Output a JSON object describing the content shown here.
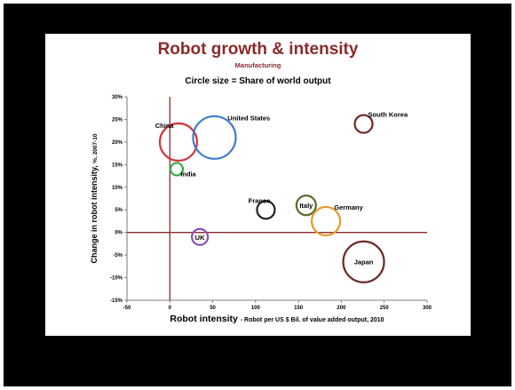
{
  "chart_data": {
    "type": "scatter",
    "title": "Robot growth & intensity",
    "subtitle": "Manufacturing",
    "note": "Circle size = Share of world output",
    "xlabel_main": "Robot intensity",
    "xlabel_sub": "- Robot per US $ Bil. of value added output, 2010",
    "ylabel_main": "Change in robot intensity,",
    "ylabel_sub": "%, 2007-10",
    "xlim": [
      -50,
      300
    ],
    "ylim": [
      -15,
      30
    ],
    "x_ticks": [
      -50,
      0,
      50,
      100,
      150,
      200,
      250,
      300
    ],
    "y_ticks": [
      30,
      25,
      20,
      15,
      10,
      5,
      0,
      -5,
      -10,
      -15
    ],
    "x_tick_labels": [
      "-50",
      "0",
      "50",
      "100",
      "150",
      "200",
      "250",
      "300"
    ],
    "y_tick_labels": [
      "30%",
      "25%",
      "20%",
      "15%",
      "10%",
      "5%",
      "0%",
      "-5%",
      "-10%",
      "-15%"
    ],
    "reference_lines": {
      "x": 0,
      "y": 0,
      "color": "#8b2b2b"
    },
    "points": [
      {
        "label": "China",
        "x": 10,
        "y": 20,
        "r": 21,
        "color": "#d0323a",
        "label_pos": "upper-left"
      },
      {
        "label": "United States",
        "x": 52,
        "y": 21,
        "r": 24,
        "color": "#3f7dc8",
        "label_pos": "upper-right"
      },
      {
        "label": "India",
        "x": 8,
        "y": 14,
        "r": 7,
        "color": "#38a844",
        "label_pos": "lower-right"
      },
      {
        "label": "UK",
        "x": 35,
        "y": -1,
        "r": 9,
        "color": "#8a52b8",
        "label_pos": "center"
      },
      {
        "label": "France",
        "x": 112,
        "y": 5,
        "r": 10,
        "color": "#222222",
        "label_pos": "upper-left"
      },
      {
        "label": "Italy",
        "x": 159,
        "y": 6,
        "r": 11,
        "color": "#5b6b2e",
        "label_pos": "center"
      },
      {
        "label": "Germany",
        "x": 182,
        "y": 2.5,
        "r": 16,
        "color": "#e89a2e",
        "label_pos": "upper-right"
      },
      {
        "label": "South Korea",
        "x": 226,
        "y": 24,
        "r": 10,
        "color": "#6b2a24",
        "label_pos": "upper-right"
      },
      {
        "label": "Japan",
        "x": 226,
        "y": -6.5,
        "r": 23,
        "color": "#6b2a24",
        "label_pos": "center"
      }
    ],
    "grid": false
  }
}
